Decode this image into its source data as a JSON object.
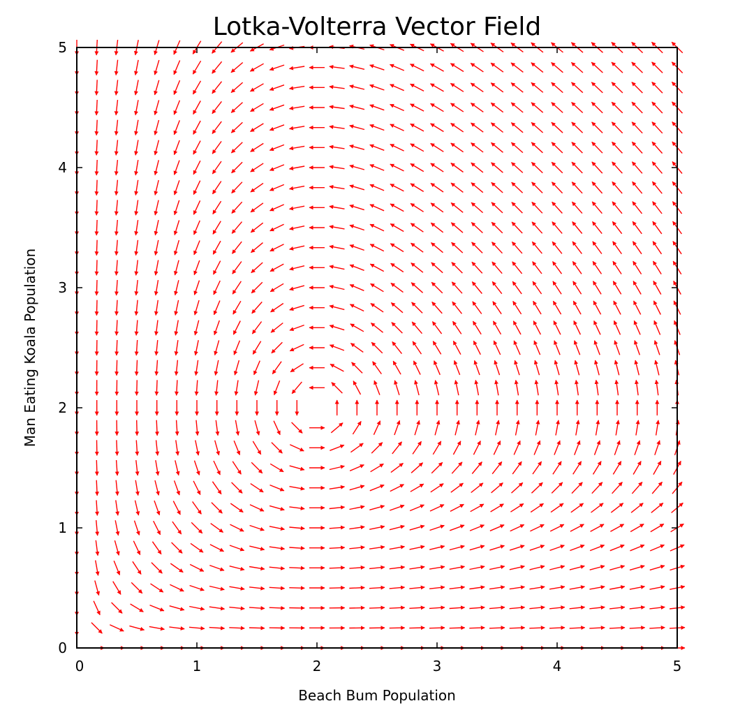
{
  "chart_data": {
    "type": "vector_field",
    "title": "Lotka-Volterra Vector Field",
    "xlabel": "Beach Bum Population",
    "ylabel": "Man Eating Koala Population",
    "xlim": [
      0,
      5
    ],
    "ylim": [
      0,
      5
    ],
    "x_ticks": [
      0,
      1,
      2,
      3,
      4,
      5
    ],
    "y_ticks": [
      0,
      1,
      2,
      3,
      4,
      5
    ],
    "grid": false,
    "arrow_color": "#ff0000",
    "equilibrium": [
      2,
      2
    ],
    "field": {
      "dx_dt": "x*(1 - y/2)",
      "dy_dt": "y*(x/2 - 1)",
      "normalized": true
    },
    "sample_spacing": [
      0.1667,
      0.1667
    ],
    "sample_count": [
      31,
      31
    ]
  }
}
